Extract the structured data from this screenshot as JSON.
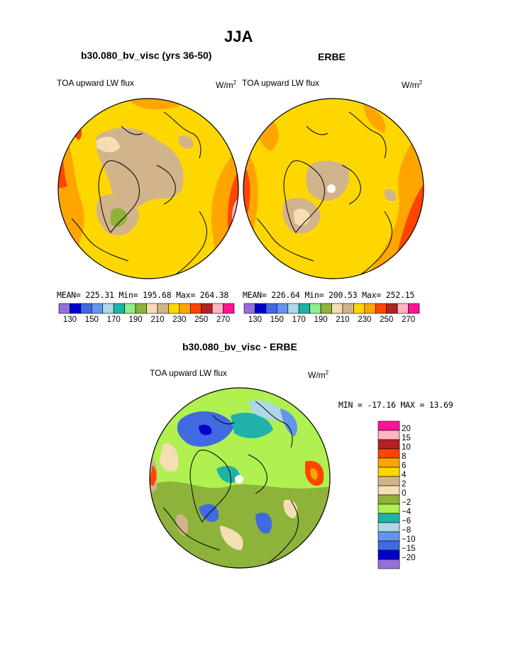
{
  "figure": {
    "title": "JJA"
  },
  "panels": [
    {
      "title": "b30.080_bv_visc (yrs 36-50)",
      "variable": "TOA upward LW flux",
      "units": "W/m",
      "units_exp": "2",
      "stats": {
        "mean_label": "MEAN=",
        "mean": "225.31",
        "min_label": "Min=",
        "min": "195.68",
        "max_label": "Max=",
        "max": "264.38"
      }
    },
    {
      "title": "ERBE",
      "variable": "TOA upward LW flux",
      "units": "W/m",
      "units_exp": "2",
      "stats": {
        "mean_label": "MEAN=",
        "mean": "226.64",
        "min_label": "Min=",
        "min": "200.53",
        "max_label": "Max=",
        "max": "252.15"
      }
    }
  ],
  "abs_colorbar": {
    "colors": [
      "#9370db",
      "#0000cd",
      "#4169e1",
      "#6495ed",
      "#add8e6",
      "#20b2aa",
      "#90ee90",
      "#8db33a",
      "#f5deb3",
      "#d2b48c",
      "#ffd700",
      "#ffa500",
      "#ff4500",
      "#b22222",
      "#ffb6c1",
      "#ff1493"
    ],
    "ticks": [
      "130",
      "150",
      "170",
      "190",
      "210",
      "230",
      "250",
      "270"
    ]
  },
  "diff_panel": {
    "title": "b30.080_bv_visc - ERBE",
    "variable": "TOA upward LW flux",
    "units": "W/m",
    "units_exp": "2",
    "stats": {
      "min_label": "MIN =",
      "min": "-17.16",
      "max_label": "MAX =",
      "max": "13.69"
    }
  },
  "diff_colorbar": {
    "colors": [
      "#ff1493",
      "#ffb6c1",
      "#b22222",
      "#ff4500",
      "#ffa500",
      "#ffd700",
      "#d2b48c",
      "#f5deb3",
      "#8db33a",
      "#b0f050",
      "#20b2aa",
      "#add8e6",
      "#6495ed",
      "#4169e1",
      "#0000cd",
      "#9370db"
    ],
    "ticks": [
      "20",
      "15",
      "10",
      "8",
      "6",
      "4",
      "2",
      "0",
      "−2",
      "−4",
      "−6",
      "−8",
      "−10",
      "−15",
      "−20"
    ]
  }
}
